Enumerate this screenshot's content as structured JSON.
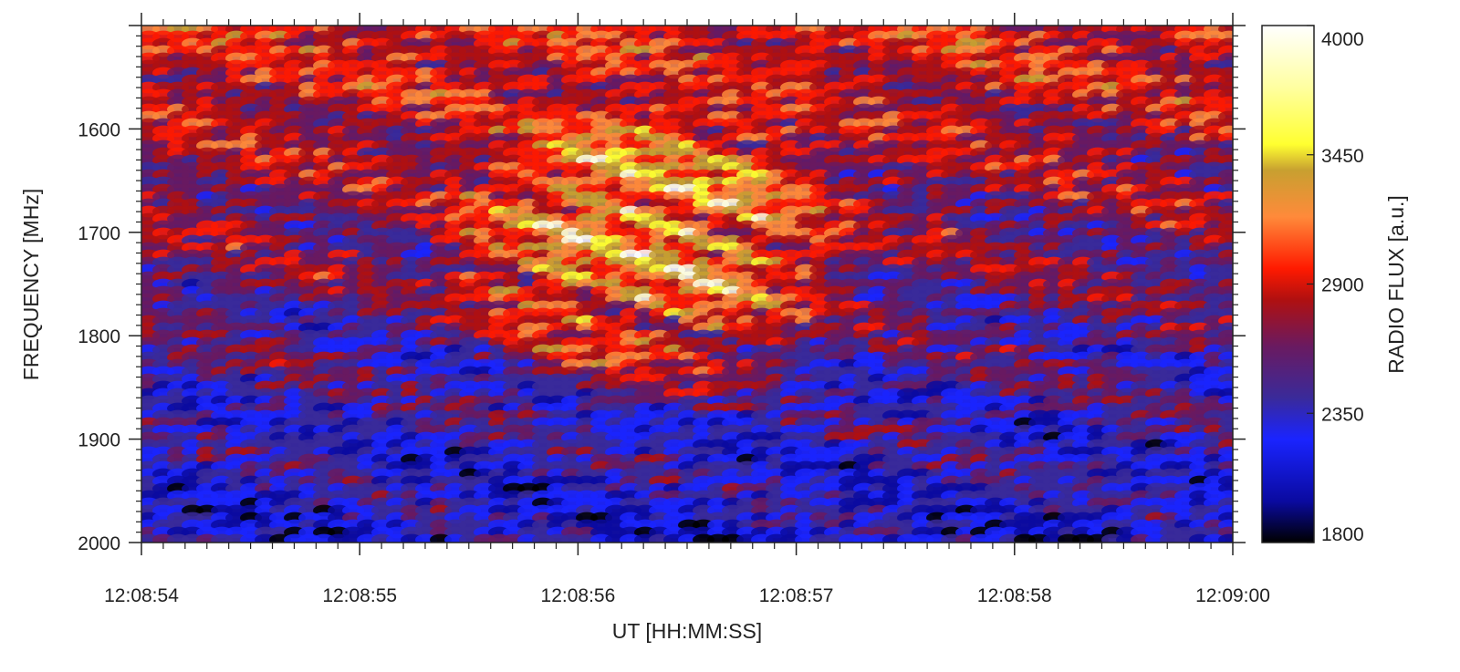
{
  "chart_data": {
    "type": "heatmap",
    "title": "",
    "xlabel": "UT [HH:MM:SS]",
    "ylabel": "FREQUENCY [MHz]",
    "x_ticks": [
      "12:08:54",
      "12:08:55",
      "12:08:56",
      "12:08:57",
      "12:08:58",
      "12:09:00"
    ],
    "x_range": [
      "12:08:54",
      "12:09:00"
    ],
    "y_ticks": [
      1600,
      1700,
      1800,
      1900,
      2000
    ],
    "y_range": [
      1500,
      2000
    ],
    "y_axis_inverted": true,
    "colorbar": {
      "label": "RADIO FLUX [a.u.]",
      "ticks": [
        4000,
        3450,
        2900,
        2350,
        1800
      ],
      "range": [
        1800,
        4000
      ],
      "colors": [
        "#000000",
        "#0a0aa0",
        "#1a24ff",
        "#3a2a9a",
        "#6a1a60",
        "#b01010",
        "#ff1a00",
        "#ff8a3a",
        "#c8a030",
        "#ffff30",
        "#ffffe0",
        "#ffffff"
      ]
    },
    "grid": false,
    "features": [
      {
        "description_source": "visual",
        "time_start": "12:08:55.5",
        "time_end": "12:08:58.0",
        "freq_start": 1550,
        "freq_end": 1880,
        "peak_flux": 4000
      }
    ]
  }
}
